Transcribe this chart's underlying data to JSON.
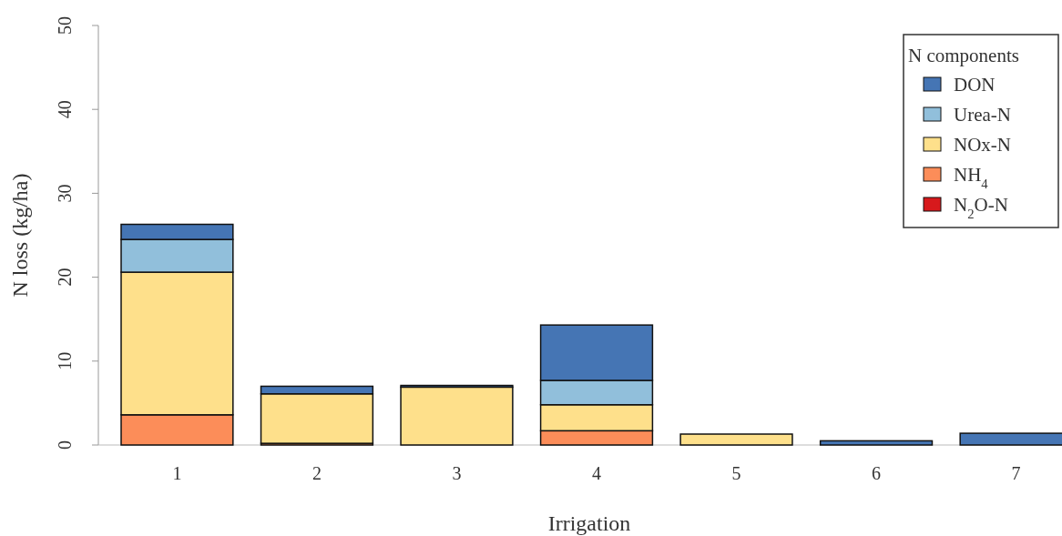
{
  "chart_data": {
    "type": "bar",
    "stacked": true,
    "xlabel": "Irrigation",
    "ylabel": "N loss (kg/ha)",
    "legend_title": "N components",
    "legend": "top right",
    "categories": [
      "1",
      "2",
      "3",
      "4",
      "5",
      "6",
      "7"
    ],
    "ylim": [
      0,
      50
    ],
    "yticks": [
      0,
      10,
      20,
      30,
      40,
      50
    ],
    "series": [
      {
        "name": "N$_{2}$O-N",
        "color": "#d7191c",
        "values": [
          0,
          0,
          0,
          0,
          0,
          0,
          0
        ]
      },
      {
        "name": "NH$_{4}$",
        "color": "#fc8d59",
        "values": [
          3.6,
          0.2,
          0,
          1.7,
          0,
          0,
          0
        ]
      },
      {
        "name": "NOx-N",
        "color": "#fee08b",
        "values": [
          17.0,
          5.9,
          6.9,
          3.1,
          1.3,
          0,
          0
        ]
      },
      {
        "name": "Urea-N",
        "color": "#91bfdb",
        "values": [
          3.9,
          0,
          0,
          2.9,
          0,
          0,
          0
        ]
      },
      {
        "name": "DON",
        "color": "#4575b4",
        "values": [
          1.8,
          0.9,
          0.2,
          6.6,
          0,
          0.5,
          1.4
        ]
      }
    ]
  }
}
